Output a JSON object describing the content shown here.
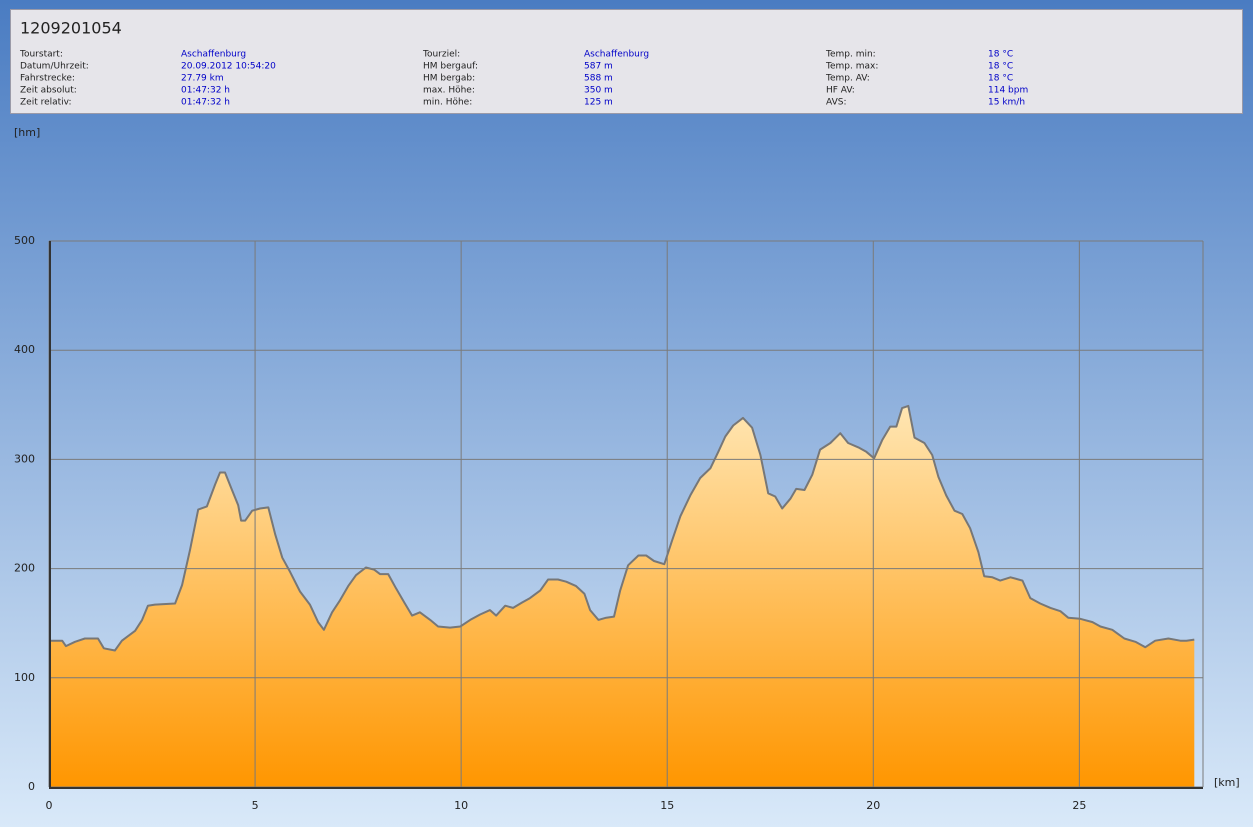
{
  "header": {
    "title": "1209201054",
    "columns": [
      [
        {
          "label": "Tourstart:",
          "value": "Aschaffenburg"
        },
        {
          "label": "Datum/Uhrzeit:",
          "value": "20.09.2012 10:54:20"
        },
        {
          "label": "Fahrstrecke:",
          "value": "27.79 km"
        },
        {
          "label": "Zeit absolut:",
          "value": "01:47:32 h"
        },
        {
          "label": "Zeit relativ:",
          "value": "01:47:32 h"
        }
      ],
      [
        {
          "label": "Tourziel:",
          "value": "Aschaffenburg"
        },
        {
          "label": "HM bergauf:",
          "value": "587 m"
        },
        {
          "label": "HM bergab:",
          "value": "588 m"
        },
        {
          "label": "max. Höhe:",
          "value": "350 m"
        },
        {
          "label": "min. Höhe:",
          "value": "125 m"
        }
      ],
      [
        {
          "label": "Temp. min:",
          "value": "18 °C"
        },
        {
          "label": "Temp. max:",
          "value": "18 °C"
        },
        {
          "label": "Temp. AV:",
          "value": "18 °C"
        },
        {
          "label": "HF AV:",
          "value": "114 bpm"
        },
        {
          "label": "AVS:",
          "value": "15 km/h"
        }
      ]
    ]
  },
  "chart_data": {
    "type": "area",
    "y_label": "[hm]",
    "x_label": "[km]",
    "x": [
      0,
      0.32,
      0.41,
      0.63,
      0.87,
      1.19,
      1.33,
      1.6,
      1.77,
      2.09,
      2.26,
      2.4,
      2.57,
      3.06,
      3.23,
      3.42,
      3.62,
      3.83,
      4.03,
      4.15,
      4.27,
      4.44,
      4.59,
      4.66,
      4.76,
      4.93,
      5.12,
      5.32,
      5.49,
      5.66,
      5.85,
      6.09,
      6.33,
      6.53,
      6.67,
      6.87,
      7.06,
      7.26,
      7.45,
      7.69,
      7.89,
      8.03,
      8.23,
      8.42,
      8.62,
      8.81,
      9.0,
      9.25,
      9.44,
      9.73,
      9.98,
      10.22,
      10.46,
      10.7,
      10.85,
      11.07,
      11.26,
      11.48,
      11.67,
      11.92,
      12.11,
      12.35,
      12.55,
      12.79,
      12.99,
      13.13,
      13.33,
      13.52,
      13.71,
      13.86,
      14.05,
      14.3,
      14.49,
      14.68,
      14.93,
      15.12,
      15.32,
      15.56,
      15.8,
      16.05,
      16.24,
      16.41,
      16.6,
      16.84,
      17.06,
      17.26,
      17.45,
      17.62,
      17.79,
      17.99,
      18.13,
      18.33,
      18.52,
      18.71,
      18.96,
      19.2,
      19.39,
      19.64,
      19.83,
      20.02,
      20.22,
      20.41,
      20.56,
      20.7,
      20.85,
      21.0,
      21.24,
      21.43,
      21.58,
      21.77,
      21.97,
      22.16,
      22.35,
      22.55,
      22.69,
      22.89,
      23.08,
      23.33,
      23.62,
      23.81,
      24.05,
      24.3,
      24.54,
      24.73,
      25.02,
      25.32,
      25.51,
      25.8,
      26.09,
      26.36,
      26.6,
      26.84,
      27.16,
      27.45,
      27.6,
      27.79
    ],
    "values": [
      134,
      134,
      129,
      133,
      136,
      136,
      127,
      125,
      134,
      143,
      153,
      166,
      167,
      168,
      185,
      217,
      254,
      257,
      277,
      288,
      288,
      272,
      258,
      244,
      244,
      253,
      255,
      256,
      231,
      210,
      197,
      179,
      167,
      151,
      144,
      160,
      171,
      184,
      194,
      201,
      199,
      195,
      195,
      182,
      169,
      157,
      160,
      153,
      147,
      146,
      147,
      153,
      158,
      162,
      157,
      166,
      164,
      169,
      173,
      180,
      190,
      190,
      188,
      184,
      177,
      162,
      153,
      155,
      156,
      180,
      203,
      212,
      212,
      207,
      204,
      226,
      248,
      267,
      283,
      292,
      307,
      321,
      331,
      338,
      329,
      304,
      269,
      266,
      255,
      264,
      273,
      272,
      286,
      309,
      315,
      324,
      315,
      311,
      307,
      301,
      318,
      330,
      330,
      347,
      349,
      320,
      315,
      304,
      284,
      267,
      253,
      250,
      237,
      215,
      193,
      192,
      189,
      192,
      189,
      173,
      168,
      164,
      161,
      155,
      154,
      151,
      147,
      144,
      136,
      133,
      128,
      134,
      136,
      134,
      134,
      135
    ],
    "xlim": [
      0,
      28
    ],
    "ylim": [
      0,
      500
    ],
    "xticks": [
      0,
      5,
      10,
      15,
      20,
      25
    ],
    "yticks": [
      0,
      100,
      200,
      300,
      400,
      500
    ],
    "grid": true,
    "color": "#ff9900",
    "line_color": "#777777"
  }
}
